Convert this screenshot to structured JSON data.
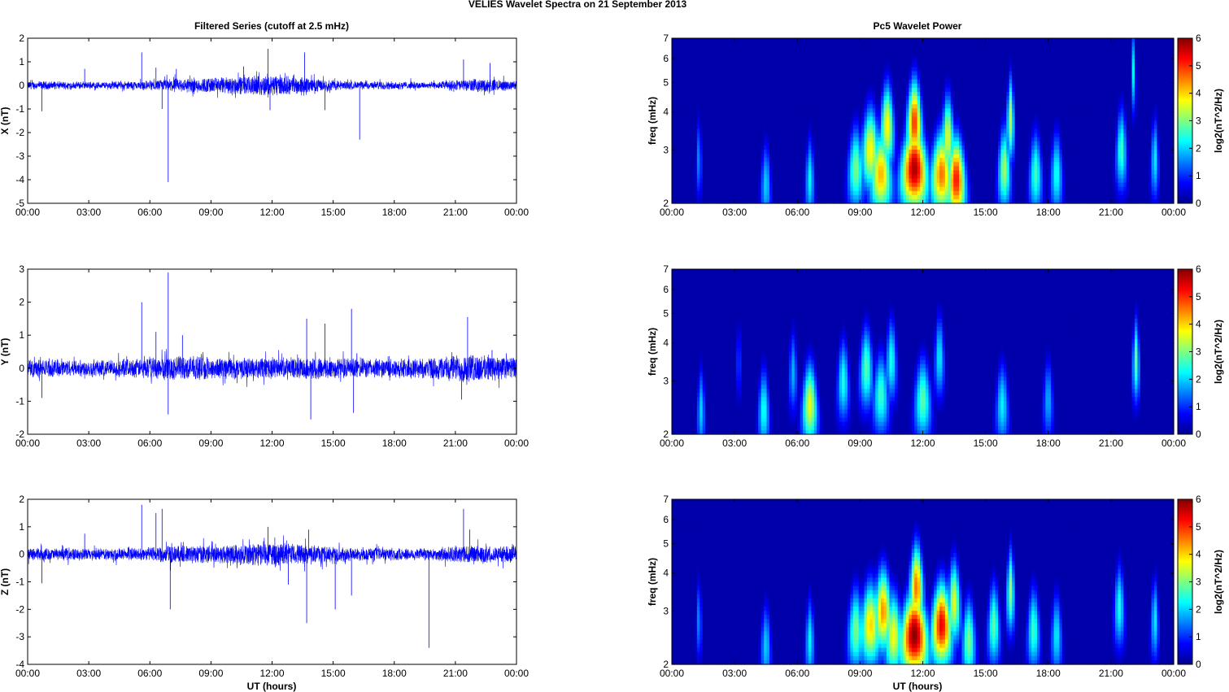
{
  "figure": {
    "suptitle": "VELIES Wavelet Spectra on 21 September 2013",
    "left_title": "Filtered Series (cutoff at 2.5 mHz)",
    "right_title": "Pc5 Wavelet Power",
    "xlabel": "UT (hours)",
    "colors": {
      "series": "#0000ff",
      "axes": "#000000",
      "bg": "#ffffff"
    }
  },
  "chart_data": [
    {
      "type": "line",
      "component": "X",
      "ylabel": "X (nT)",
      "ylim": [
        -5,
        2
      ],
      "yticks": [
        "-5",
        "-4",
        "-3",
        "-2",
        "-1",
        "0",
        "1",
        "2"
      ],
      "xlim": [
        0,
        24
      ],
      "xticks": [
        "00:00",
        "03:00",
        "06:00",
        "09:00",
        "12:00",
        "15:00",
        "18:00",
        "21:00",
        "00:00"
      ],
      "noise_envelope": [
        [
          0,
          0.15
        ],
        [
          3,
          0.12
        ],
        [
          5.5,
          0.15
        ],
        [
          7,
          0.25
        ],
        [
          9,
          0.3
        ],
        [
          10.5,
          0.35
        ],
        [
          12,
          0.4
        ],
        [
          13,
          0.35
        ],
        [
          14,
          0.25
        ],
        [
          16,
          0.15
        ],
        [
          20,
          0.12
        ],
        [
          21,
          0.2
        ],
        [
          22.5,
          0.25
        ],
        [
          24,
          0.15
        ]
      ],
      "spikes": [
        [
          0.7,
          -1.1
        ],
        [
          2.8,
          0.7
        ],
        [
          5.6,
          1.4
        ],
        [
          6.3,
          0.75
        ],
        [
          6.6,
          -1.0
        ],
        [
          6.9,
          -4.1
        ],
        [
          7.3,
          0.7
        ],
        [
          10.6,
          0.8
        ],
        [
          11.8,
          1.55
        ],
        [
          11.9,
          -1.05
        ],
        [
          13.6,
          1.4
        ],
        [
          14.6,
          -1.05
        ],
        [
          16.3,
          -2.3
        ],
        [
          21.4,
          1.1
        ],
        [
          22.7,
          0.95
        ]
      ]
    },
    {
      "type": "line",
      "component": "Y",
      "ylabel": "Y (nT)",
      "ylim": [
        -2,
        3
      ],
      "yticks": [
        "-2",
        "-1",
        "0",
        "1",
        "2",
        "3"
      ],
      "xlim": [
        0,
        24
      ],
      "xticks": [
        "00:00",
        "03:00",
        "06:00",
        "09:00",
        "12:00",
        "15:00",
        "18:00",
        "21:00",
        "00:00"
      ],
      "noise_envelope": [
        [
          0,
          0.25
        ],
        [
          3,
          0.22
        ],
        [
          5.5,
          0.25
        ],
        [
          7,
          0.35
        ],
        [
          9,
          0.3
        ],
        [
          12,
          0.28
        ],
        [
          14,
          0.3
        ],
        [
          18,
          0.25
        ],
        [
          20,
          0.3
        ],
        [
          21.5,
          0.4
        ],
        [
          24,
          0.3
        ]
      ],
      "spikes": [
        [
          0.7,
          -0.9
        ],
        [
          5.6,
          2.0
        ],
        [
          6.3,
          1.1
        ],
        [
          6.9,
          2.9
        ],
        [
          6.9,
          -1.4
        ],
        [
          7.6,
          1.0
        ],
        [
          13.7,
          1.5
        ],
        [
          13.9,
          -1.55
        ],
        [
          14.6,
          1.35
        ],
        [
          15.9,
          1.8
        ],
        [
          16.0,
          -1.35
        ],
        [
          21.3,
          -0.95
        ],
        [
          21.6,
          1.55
        ],
        [
          22.8,
          0.55
        ]
      ]
    },
    {
      "type": "line",
      "component": "Z",
      "ylabel": "Z (nT)",
      "ylim": [
        -4,
        2
      ],
      "yticks": [
        "-4",
        "-3",
        "-2",
        "-1",
        "0",
        "1",
        "2"
      ],
      "xlim": [
        0,
        24
      ],
      "xticks": [
        "00:00",
        "03:00",
        "06:00",
        "09:00",
        "12:00",
        "15:00",
        "18:00",
        "21:00",
        "00:00"
      ],
      "noise_envelope": [
        [
          0,
          0.2
        ],
        [
          3,
          0.18
        ],
        [
          5.5,
          0.2
        ],
        [
          7,
          0.3
        ],
        [
          9,
          0.3
        ],
        [
          11.8,
          0.4
        ],
        [
          13,
          0.35
        ],
        [
          14,
          0.3
        ],
        [
          16,
          0.2
        ],
        [
          20,
          0.2
        ],
        [
          21.5,
          0.3
        ],
        [
          24,
          0.25
        ]
      ],
      "spikes": [
        [
          0.7,
          -1.05
        ],
        [
          2.8,
          0.75
        ],
        [
          5.6,
          1.8
        ],
        [
          6.3,
          1.5
        ],
        [
          6.6,
          1.65
        ],
        [
          7.0,
          -2.0
        ],
        [
          11.8,
          1.0
        ],
        [
          12.8,
          -1.1
        ],
        [
          13.7,
          -2.5
        ],
        [
          13.8,
          0.9
        ],
        [
          15.1,
          -2.0
        ],
        [
          15.9,
          -1.5
        ],
        [
          19.7,
          -3.4
        ],
        [
          21.4,
          1.65
        ],
        [
          21.7,
          0.9
        ]
      ]
    },
    {
      "type": "heatmap",
      "component": "X",
      "ylabel": "freq (mHz)",
      "yscale": "log",
      "ylim": [
        2,
        7
      ],
      "yticks": [
        "2",
        "3",
        "4",
        "5",
        "6",
        "7"
      ],
      "xlim": [
        0,
        24
      ],
      "xticks": [
        "00:00",
        "03:00",
        "06:00",
        "09:00",
        "12:00",
        "15:00",
        "18:00",
        "21:00",
        "00:00"
      ],
      "colorbar": {
        "label": "log2(nT^2/Hz)",
        "range": [
          0,
          6
        ],
        "ticks": [
          "0",
          "1",
          "2",
          "3",
          "4",
          "5",
          "6"
        ]
      },
      "blobs": [
        [
          1.3,
          2.8,
          0.6,
          1.6
        ],
        [
          4.5,
          2.3,
          0.9,
          2.0
        ],
        [
          6.6,
          2.4,
          0.8,
          2.2
        ],
        [
          8.8,
          2.6,
          1.5,
          3.0
        ],
        [
          9.5,
          3.0,
          2.0,
          3.8
        ],
        [
          10.0,
          2.5,
          2.0,
          4.2
        ],
        [
          10.3,
          3.6,
          1.8,
          3.8
        ],
        [
          11.6,
          2.6,
          2.5,
          5.8
        ],
        [
          11.6,
          3.7,
          2.0,
          5.0
        ],
        [
          12.9,
          2.5,
          2.0,
          4.6
        ],
        [
          13.6,
          2.4,
          1.6,
          5.2
        ],
        [
          13.2,
          3.3,
          1.5,
          3.6
        ],
        [
          15.9,
          2.6,
          1.2,
          3.2
        ],
        [
          16.2,
          3.8,
          1.0,
          3.4
        ],
        [
          17.4,
          2.5,
          1.2,
          2.6
        ],
        [
          18.4,
          2.5,
          1.1,
          2.4
        ],
        [
          21.5,
          3.0,
          1.2,
          2.6
        ],
        [
          23.1,
          2.8,
          0.8,
          2.2
        ],
        [
          22.1,
          5.5,
          0.7,
          2.6
        ]
      ]
    },
    {
      "type": "heatmap",
      "component": "Y",
      "ylabel": "freq (mHz)",
      "yscale": "log",
      "ylim": [
        2,
        7
      ],
      "yticks": [
        "2",
        "3",
        "4",
        "5",
        "6",
        "7"
      ],
      "xlim": [
        0,
        24
      ],
      "xticks": [
        "00:00",
        "03:00",
        "06:00",
        "09:00",
        "12:00",
        "15:00",
        "18:00",
        "21:00",
        "00:00"
      ],
      "colorbar": {
        "label": "log2(nT^2/Hz)",
        "range": [
          0,
          6
        ],
        "ticks": [
          "0",
          "1",
          "2",
          "3",
          "4",
          "5",
          "6"
        ]
      },
      "blobs": [
        [
          1.4,
          2.4,
          0.7,
          2.0
        ],
        [
          4.4,
          2.4,
          1.0,
          2.4
        ],
        [
          5.8,
          3.2,
          1.0,
          1.8
        ],
        [
          6.6,
          2.5,
          1.4,
          3.6
        ],
        [
          8.2,
          3.0,
          1.3,
          2.4
        ],
        [
          9.3,
          3.3,
          1.6,
          2.8
        ],
        [
          10.0,
          2.7,
          1.6,
          2.6
        ],
        [
          10.5,
          3.5,
          1.4,
          2.4
        ],
        [
          12.0,
          2.6,
          1.6,
          2.8
        ],
        [
          12.8,
          3.6,
          1.3,
          2.2
        ],
        [
          15.8,
          2.5,
          1.2,
          2.2
        ],
        [
          18.0,
          2.6,
          1.0,
          1.8
        ],
        [
          22.2,
          3.5,
          0.9,
          2.8
        ],
        [
          3.2,
          3.5,
          0.7,
          1.2
        ]
      ]
    },
    {
      "type": "heatmap",
      "component": "Z",
      "ylabel": "freq (mHz)",
      "yscale": "log",
      "ylim": [
        2,
        7
      ],
      "yticks": [
        "2",
        "3",
        "4",
        "5",
        "6",
        "7"
      ],
      "xlim": [
        0,
        24
      ],
      "xticks": [
        "00:00",
        "03:00",
        "06:00",
        "09:00",
        "12:00",
        "15:00",
        "18:00",
        "21:00",
        "00:00"
      ],
      "colorbar": {
        "label": "log2(nT^2/Hz)",
        "range": [
          0,
          6
        ],
        "ticks": [
          "0",
          "1",
          "2",
          "3",
          "4",
          "5",
          "6"
        ]
      },
      "blobs": [
        [
          1.3,
          2.8,
          0.6,
          1.6
        ],
        [
          4.5,
          2.3,
          0.9,
          2.0
        ],
        [
          6.6,
          2.4,
          0.8,
          2.2
        ],
        [
          8.8,
          2.6,
          1.5,
          3.0
        ],
        [
          9.5,
          2.7,
          2.0,
          4.0
        ],
        [
          10.1,
          3.0,
          2.0,
          4.4
        ],
        [
          10.6,
          2.5,
          1.6,
          3.8
        ],
        [
          11.6,
          2.5,
          2.5,
          6.0
        ],
        [
          11.7,
          3.6,
          1.8,
          4.6
        ],
        [
          12.9,
          2.7,
          2.0,
          5.4
        ],
        [
          13.5,
          3.2,
          1.5,
          3.6
        ],
        [
          14.2,
          2.4,
          1.2,
          3.0
        ],
        [
          15.4,
          2.7,
          1.2,
          2.8
        ],
        [
          16.2,
          3.5,
          1.0,
          3.2
        ],
        [
          17.3,
          2.6,
          1.2,
          2.6
        ],
        [
          18.4,
          2.5,
          1.0,
          2.2
        ],
        [
          21.4,
          3.1,
          1.2,
          2.4
        ],
        [
          23.1,
          2.8,
          0.8,
          2.2
        ]
      ]
    }
  ]
}
